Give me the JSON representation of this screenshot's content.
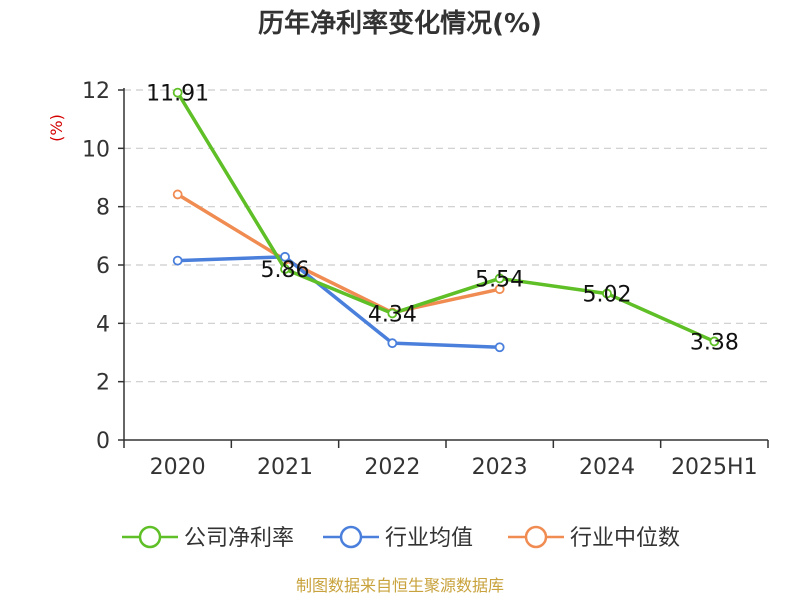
{
  "chart_data": {
    "type": "line",
    "title": "历年净利率变化情况(%)",
    "ylabel": "(%)",
    "xlabel": "",
    "categories": [
      "2020",
      "2021",
      "2022",
      "2023",
      "2024",
      "2025H1"
    ],
    "ylim": [
      0,
      12
    ],
    "yticks": [
      0,
      2,
      4,
      6,
      8,
      10,
      12
    ],
    "grid": true,
    "legend_position": "bottom",
    "series": [
      {
        "name": "公司净利率",
        "color": "#5fbf26",
        "values": [
          11.91,
          5.86,
          4.34,
          5.54,
          5.02,
          3.38
        ],
        "labels": [
          "11.91",
          "5.86",
          "4.34",
          "5.54",
          "5.02",
          "3.38"
        ]
      },
      {
        "name": "行业均值",
        "color": "#4a7fdc",
        "values": [
          6.15,
          6.28,
          3.32,
          3.18,
          null,
          null
        ]
      },
      {
        "name": "行业中位数",
        "color": "#f08c52",
        "values": [
          8.42,
          6.18,
          4.37,
          5.17,
          null,
          null
        ]
      }
    ],
    "source": "制图数据来自恒生聚源数据库"
  }
}
